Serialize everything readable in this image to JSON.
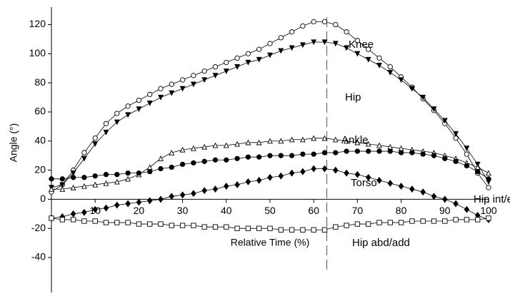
{
  "chart_data": {
    "type": "line",
    "xlabel": "Relative Time (%)",
    "ylabel": "Angle (°)",
    "xlim": [
      0,
      100
    ],
    "ylim": [
      -64,
      132
    ],
    "xticks": [
      10,
      20,
      30,
      40,
      50,
      60,
      70,
      80,
      90,
      100
    ],
    "yticks": [
      -40,
      -20,
      0,
      20,
      40,
      60,
      80,
      100,
      120
    ],
    "vline": 63,
    "x": [
      0,
      2.5,
      5,
      7.5,
      10,
      12.5,
      15,
      17.5,
      20,
      22.5,
      25,
      27.5,
      30,
      32.5,
      35,
      37.5,
      40,
      42.5,
      45,
      47.5,
      50,
      52.5,
      55,
      57.5,
      60,
      62.5,
      65,
      67.5,
      70,
      72.5,
      75,
      77.5,
      80,
      82.5,
      85,
      87.5,
      90,
      92.5,
      95,
      97.5,
      100
    ],
    "series": [
      {
        "name": "Knee",
        "color": "#000000",
        "marker": "circle-open",
        "values": [
          5,
          10,
          20,
          32,
          42,
          52,
          59,
          64,
          68,
          72,
          76,
          79,
          82,
          85,
          88,
          91,
          94,
          97,
          100,
          103,
          107,
          111,
          115,
          119,
          122,
          122,
          120,
          115,
          109,
          103,
          97,
          91,
          84,
          77,
          69,
          61,
          52,
          42,
          31,
          18,
          8
        ]
      },
      {
        "name": "Hip",
        "color": "#000000",
        "marker": "triangle-down-filled",
        "values": [
          8,
          10,
          18,
          28,
          38,
          46,
          53,
          58,
          62,
          66,
          70,
          73,
          76,
          79,
          82,
          85,
          88,
          91,
          94,
          96,
          99,
          102,
          104,
          106,
          108,
          108,
          107,
          104,
          100,
          96,
          92,
          87,
          82,
          76,
          70,
          62,
          54,
          45,
          35,
          24,
          12
        ]
      },
      {
        "name": "Ankle",
        "color": "#000000",
        "marker": "triangle-open",
        "values": [
          7,
          7,
          8,
          9,
          10,
          11,
          12,
          14,
          17,
          22,
          28,
          32,
          34,
          35,
          36,
          37,
          37,
          38,
          39,
          39,
          40,
          40,
          41,
          41,
          42,
          42,
          41,
          40,
          39,
          38,
          37,
          36,
          35,
          34,
          33,
          32,
          30,
          28,
          25,
          22,
          18
        ]
      },
      {
        "name": "Torso",
        "color": "#000000",
        "marker": "circle-filled",
        "values": [
          14,
          14,
          15,
          15,
          16,
          17,
          17,
          18,
          18,
          19,
          21,
          22,
          24,
          25,
          26,
          27,
          27,
          28,
          29,
          29,
          30,
          30,
          30,
          31,
          31,
          32,
          32,
          33,
          33,
          33,
          33,
          33,
          32,
          32,
          31,
          30,
          28,
          26,
          23,
          19,
          14
        ]
      },
      {
        "name": "Hip int/ext",
        "color": "#000000",
        "marker": "diamond-filled",
        "values": [
          -13,
          -12,
          -10,
          -9,
          -7,
          -6,
          -4,
          -3,
          -2,
          -1,
          0,
          2,
          3,
          4,
          6,
          7,
          9,
          10,
          12,
          13,
          15,
          16,
          18,
          19,
          21,
          21,
          20,
          18,
          17,
          15,
          13,
          11,
          9,
          7,
          5,
          2,
          0,
          -3,
          -7,
          -11,
          -14
        ]
      },
      {
        "name": "Hip abd/add",
        "color": "#000000",
        "marker": "square-open",
        "values": [
          -13,
          -14,
          -14,
          -15,
          -15,
          -16,
          -16,
          -16,
          -17,
          -17,
          -17,
          -18,
          -18,
          -18,
          -19,
          -19,
          -19,
          -20,
          -20,
          -20,
          -20,
          -21,
          -21,
          -21,
          -21,
          -21,
          -19,
          -18,
          -17,
          -17,
          -16,
          -16,
          -16,
          -15,
          -15,
          -15,
          -15,
          -14,
          -14,
          -14,
          -13
        ]
      }
    ]
  }
}
